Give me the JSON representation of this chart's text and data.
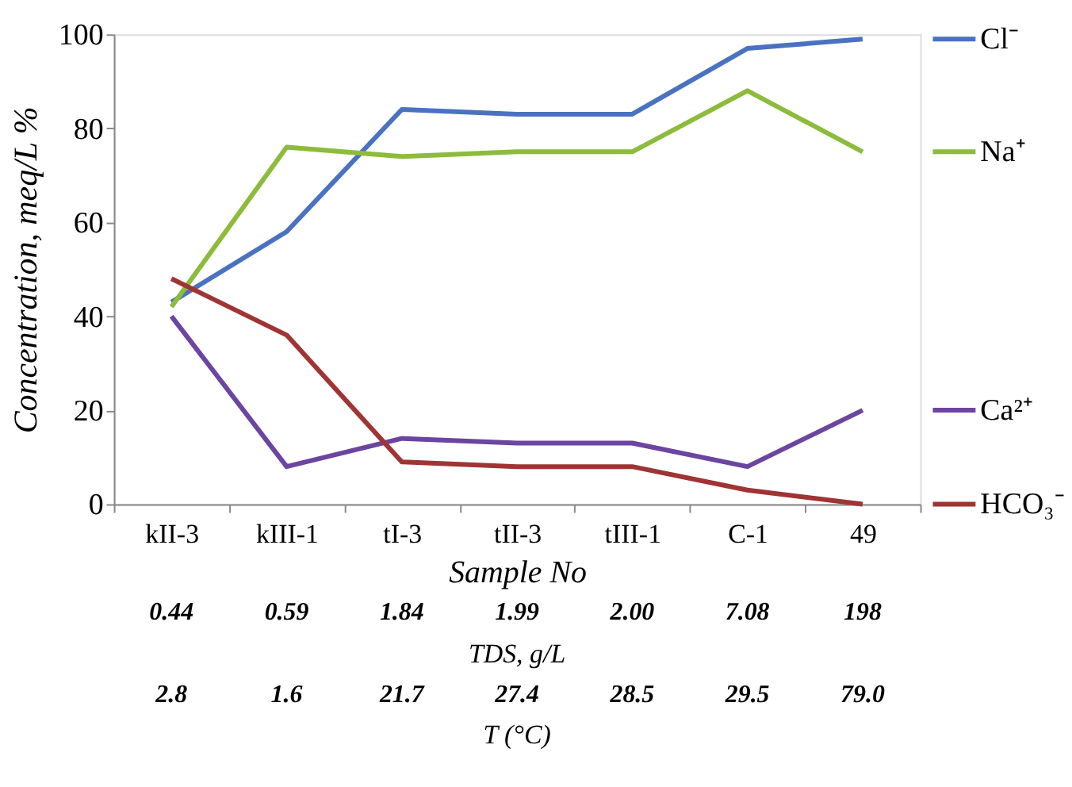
{
  "chart_data": {
    "type": "line",
    "xlabel": "Sample No",
    "ylabel": "Concentration, meq/L %",
    "categories": [
      "kII-3",
      "kIII-1",
      "tI-3",
      "tII-3",
      "tIII-1",
      "C-1",
      "49"
    ],
    "series": [
      {
        "name": "Cl⁻",
        "color": "#4a72c0",
        "values": [
          43,
          58,
          84,
          83,
          83,
          97,
          99
        ]
      },
      {
        "name": "Na⁺",
        "color": "#8dbb3c",
        "values": [
          42,
          76,
          74,
          75,
          75,
          88,
          75
        ]
      },
      {
        "name": "Ca²⁺",
        "color": "#6c45a0",
        "values": [
          40,
          8,
          14,
          13,
          13,
          8,
          20
        ]
      },
      {
        "name": "HCO₃⁻",
        "color": "#a03434",
        "values": [
          48,
          36,
          9,
          8,
          8,
          3,
          0
        ]
      }
    ],
    "ylim": [
      0,
      100
    ],
    "yticks": [
      0,
      20,
      40,
      60,
      80,
      100
    ],
    "grid": false,
    "legend": "right",
    "line_style": "solid",
    "marker": "none",
    "annotations": [
      "0.44",
      "0.59",
      "1.84",
      "1.99",
      "2.00",
      "7.08",
      "198",
      "TDS, g/L",
      "2.8",
      "1.6",
      "21.7",
      "27.4",
      "28.5",
      "29.5",
      "79.0",
      "T (°C)"
    ]
  }
}
